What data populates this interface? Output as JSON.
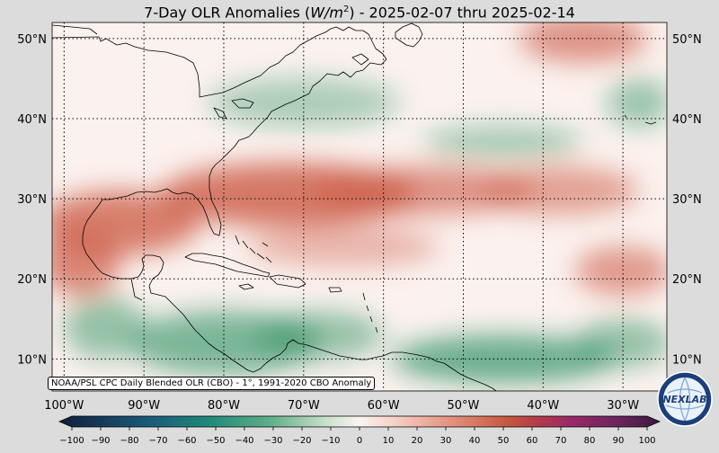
{
  "title": {
    "prefix": "7-Day OLR Anomalies (",
    "unit_base": "W/m",
    "unit_exp": "2",
    "suffix": ") - 2025-02-07 thru 2025-02-14"
  },
  "credit": "NOAA/PSL CPC Daily Blended OLR (CBO) - 1°, 1991-2020 CBO Anomaly",
  "logo": {
    "text": "NEXLAB",
    "icon": "nexlab-globe-logo"
  },
  "map": {
    "lon_range": [
      -101.5,
      -24.5
    ],
    "lat_range": [
      6,
      52
    ],
    "lat_ticks": [
      {
        "value": 50,
        "label": "50°N"
      },
      {
        "value": 40,
        "label": "40°N"
      },
      {
        "value": 30,
        "label": "30°N"
      },
      {
        "value": 20,
        "label": "20°N"
      },
      {
        "value": 10,
        "label": "10°N"
      }
    ],
    "lon_ticks": [
      {
        "value": -100,
        "label": "100°W"
      },
      {
        "value": -90,
        "label": "90°W"
      },
      {
        "value": -80,
        "label": "80°W"
      },
      {
        "value": -70,
        "label": "70°W"
      },
      {
        "value": -60,
        "label": "60°W"
      },
      {
        "value": -50,
        "label": "50°W"
      },
      {
        "value": -40,
        "label": "40°W"
      },
      {
        "value": -30,
        "label": "30°W"
      }
    ],
    "gridlines": "dotted",
    "colors": {
      "negative": "#1f8a5a",
      "neutral": "#fbf1ee",
      "positive": "#cc5a45",
      "coast": "#000000"
    },
    "anomaly_regions": [
      {
        "lon": -72,
        "lat": 30.5,
        "rlon": 16,
        "rlat": 4,
        "value": 30
      },
      {
        "lon": -93,
        "lat": 27,
        "rlon": 10,
        "rlat": 4,
        "value": 28
      },
      {
        "lon": -98,
        "lat": 22,
        "rlon": 5,
        "rlat": 4,
        "value": 25
      },
      {
        "lon": -55,
        "lat": 31,
        "rlon": 14,
        "rlat": 3,
        "value": 20
      },
      {
        "lon": -38,
        "lat": 31,
        "rlon": 10,
        "rlat": 3,
        "value": 15
      },
      {
        "lon": -30,
        "lat": 21,
        "rlon": 6,
        "rlat": 3,
        "value": 18
      },
      {
        "lon": -35,
        "lat": 50,
        "rlon": 8,
        "rlat": 3,
        "value": 20
      },
      {
        "lon": -65,
        "lat": 24,
        "rlon": 12,
        "rlat": 2.5,
        "value": 8
      },
      {
        "lon": -45,
        "lat": 37,
        "rlon": 10,
        "rlat": 2,
        "value": -8
      },
      {
        "lon": -70,
        "lat": 42,
        "rlon": 12,
        "rlat": 3,
        "value": -6
      },
      {
        "lon": -80,
        "lat": 12,
        "rlon": 12,
        "rlat": 4,
        "value": -18
      },
      {
        "lon": -68,
        "lat": 13,
        "rlon": 8,
        "rlat": 3,
        "value": -12
      },
      {
        "lon": -45,
        "lat": 10,
        "rlon": 14,
        "rlat": 3,
        "value": -22
      },
      {
        "lon": -30,
        "lat": 12,
        "rlon": 6,
        "rlat": 3,
        "value": -12
      },
      {
        "lon": -95,
        "lat": 14,
        "rlon": 5,
        "rlat": 4,
        "value": -12
      },
      {
        "lon": -28,
        "lat": 42,
        "rlon": 4,
        "rlat": 3,
        "value": -10
      }
    ]
  },
  "colorbar": {
    "min": -100,
    "max": 100,
    "ticks": [
      -100,
      -90,
      -80,
      -70,
      -60,
      -50,
      -40,
      -30,
      -20,
      -10,
      0,
      10,
      20,
      30,
      40,
      50,
      60,
      70,
      80,
      90,
      100
    ],
    "tick_labels": [
      "−100",
      "−90",
      "−80",
      "−70",
      "−60",
      "−50",
      "−40",
      "−30",
      "−20",
      "−10",
      "0",
      "10",
      "20",
      "30",
      "40",
      "50",
      "60",
      "70",
      "80",
      "90",
      "100"
    ],
    "stops": [
      {
        "value": -100,
        "color": "#0f1f3a"
      },
      {
        "value": -70,
        "color": "#1b5a7a"
      },
      {
        "value": -50,
        "color": "#1f8a7a"
      },
      {
        "value": -30,
        "color": "#5fae88"
      },
      {
        "value": -10,
        "color": "#cfe3cf"
      },
      {
        "value": 0,
        "color": "#fbf3f0"
      },
      {
        "value": 10,
        "color": "#f6d6cc"
      },
      {
        "value": 30,
        "color": "#e4927e"
      },
      {
        "value": 50,
        "color": "#c5553f"
      },
      {
        "value": 60,
        "color": "#b33a4a"
      },
      {
        "value": 70,
        "color": "#9a2a67"
      },
      {
        "value": 85,
        "color": "#6e2461"
      },
      {
        "value": 100,
        "color": "#3c1a3a"
      }
    ]
  }
}
